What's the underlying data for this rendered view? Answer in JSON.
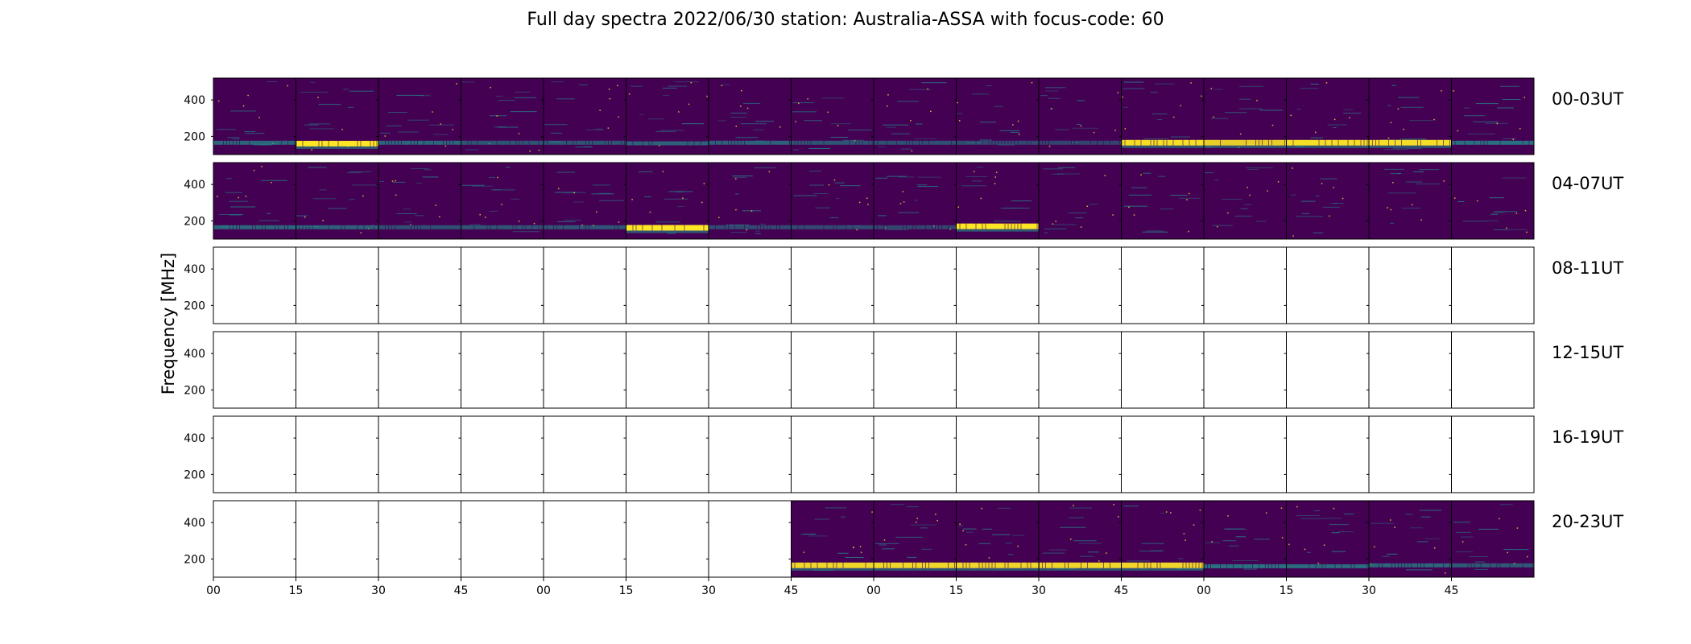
{
  "chart_data": {
    "type": "heatmap",
    "title": "Full day spectra 2022/06/30 station: Australia-ASSA with focus-code: 60",
    "xlabel": "",
    "ylabel": "Frequency [MHz]",
    "ylim": [
      100,
      520
    ],
    "yticks": [
      200,
      400
    ],
    "xtick_labels": [
      "00",
      "15",
      "30",
      "45",
      "00",
      "15",
      "30",
      "45",
      "00",
      "15",
      "30",
      "45",
      "00",
      "15",
      "30",
      "45"
    ],
    "colormap": "viridis",
    "colors": {
      "background": "#440154",
      "band": "#21918c",
      "burst": "#fde725",
      "axis": "#000000"
    },
    "rows": [
      {
        "label": "00-03UT",
        "segments": [
          {
            "has_data": true,
            "band_mhz": 165,
            "intensity": 0.6,
            "burst": false
          },
          {
            "has_data": true,
            "band_mhz": 160,
            "intensity": 1.0,
            "burst": true
          },
          {
            "has_data": true,
            "band_mhz": 165,
            "intensity": 0.6,
            "burst": false
          },
          {
            "has_data": true,
            "band_mhz": 165,
            "intensity": 0.45,
            "burst": false
          },
          {
            "has_data": true,
            "band_mhz": 165,
            "intensity": 0.45,
            "burst": false
          },
          {
            "has_data": true,
            "band_mhz": 162,
            "intensity": 0.55,
            "burst": false
          },
          {
            "has_data": true,
            "band_mhz": 165,
            "intensity": 0.55,
            "burst": false
          },
          {
            "has_data": true,
            "band_mhz": 165,
            "intensity": 0.45,
            "burst": false
          },
          {
            "has_data": true,
            "band_mhz": 165,
            "intensity": 0.4,
            "burst": false
          },
          {
            "has_data": true,
            "band_mhz": 165,
            "intensity": 0.35,
            "burst": false
          },
          {
            "has_data": true,
            "band_mhz": 165,
            "intensity": 0.3,
            "burst": false
          },
          {
            "has_data": true,
            "band_mhz": 165,
            "intensity": 0.95,
            "burst": true
          },
          {
            "has_data": true,
            "band_mhz": 165,
            "intensity": 0.85,
            "burst": true
          },
          {
            "has_data": true,
            "band_mhz": 165,
            "intensity": 0.95,
            "burst": true
          },
          {
            "has_data": true,
            "band_mhz": 165,
            "intensity": 0.95,
            "burst": true
          },
          {
            "has_data": true,
            "band_mhz": 165,
            "intensity": 0.7,
            "burst": false
          }
        ]
      },
      {
        "label": "04-07UT",
        "segments": [
          {
            "has_data": true,
            "band_mhz": 165,
            "intensity": 0.6,
            "burst": false
          },
          {
            "has_data": true,
            "band_mhz": 165,
            "intensity": 0.55,
            "burst": false
          },
          {
            "has_data": true,
            "band_mhz": 165,
            "intensity": 0.4,
            "burst": false
          },
          {
            "has_data": true,
            "band_mhz": 165,
            "intensity": 0.45,
            "burst": false
          },
          {
            "has_data": true,
            "band_mhz": 165,
            "intensity": 0.45,
            "burst": false
          },
          {
            "has_data": true,
            "band_mhz": 162,
            "intensity": 1.0,
            "burst": true
          },
          {
            "has_data": true,
            "band_mhz": 165,
            "intensity": 0.35,
            "burst": false
          },
          {
            "has_data": true,
            "band_mhz": 165,
            "intensity": 0.35,
            "burst": false
          },
          {
            "has_data": true,
            "band_mhz": 165,
            "intensity": 0.3,
            "burst": false
          },
          {
            "has_data": true,
            "band_mhz": 170,
            "intensity": 1.0,
            "burst": true
          },
          {
            "has_data": true,
            "band_mhz": 165,
            "intensity": 0.0,
            "burst": false
          },
          {
            "has_data": true,
            "band_mhz": 165,
            "intensity": 0.0,
            "burst": false
          },
          {
            "has_data": true,
            "band_mhz": 165,
            "intensity": 0.0,
            "burst": false
          },
          {
            "has_data": true,
            "band_mhz": 165,
            "intensity": 0.0,
            "burst": false
          },
          {
            "has_data": true,
            "band_mhz": 165,
            "intensity": 0.0,
            "burst": false
          },
          {
            "has_data": true,
            "band_mhz": 165,
            "intensity": 0.0,
            "burst": false
          }
        ]
      },
      {
        "label": "08-11UT",
        "segments": [
          {
            "has_data": false
          },
          {
            "has_data": false
          },
          {
            "has_data": false
          },
          {
            "has_data": false
          },
          {
            "has_data": false
          },
          {
            "has_data": false
          },
          {
            "has_data": false
          },
          {
            "has_data": false
          },
          {
            "has_data": false
          },
          {
            "has_data": false
          },
          {
            "has_data": false
          },
          {
            "has_data": false
          },
          {
            "has_data": false
          },
          {
            "has_data": false
          },
          {
            "has_data": false
          },
          {
            "has_data": false
          }
        ]
      },
      {
        "label": "12-15UT",
        "segments": [
          {
            "has_data": false
          },
          {
            "has_data": false
          },
          {
            "has_data": false
          },
          {
            "has_data": false
          },
          {
            "has_data": false
          },
          {
            "has_data": false
          },
          {
            "has_data": false
          },
          {
            "has_data": false
          },
          {
            "has_data": false
          },
          {
            "has_data": false
          },
          {
            "has_data": false
          },
          {
            "has_data": false
          },
          {
            "has_data": false
          },
          {
            "has_data": false
          },
          {
            "has_data": false
          },
          {
            "has_data": false
          }
        ]
      },
      {
        "label": "16-19UT",
        "segments": [
          {
            "has_data": false
          },
          {
            "has_data": false
          },
          {
            "has_data": false
          },
          {
            "has_data": false
          },
          {
            "has_data": false
          },
          {
            "has_data": false
          },
          {
            "has_data": false
          },
          {
            "has_data": false
          },
          {
            "has_data": false
          },
          {
            "has_data": false
          },
          {
            "has_data": false
          },
          {
            "has_data": false
          },
          {
            "has_data": false
          },
          {
            "has_data": false
          },
          {
            "has_data": false
          },
          {
            "has_data": false
          }
        ]
      },
      {
        "label": "20-23UT",
        "segments": [
          {
            "has_data": false
          },
          {
            "has_data": false
          },
          {
            "has_data": false
          },
          {
            "has_data": false
          },
          {
            "has_data": false
          },
          {
            "has_data": false
          },
          {
            "has_data": false
          },
          {
            "has_data": true,
            "band_mhz": 165,
            "intensity": 0.9,
            "burst": true
          },
          {
            "has_data": true,
            "band_mhz": 165,
            "intensity": 0.9,
            "burst": true
          },
          {
            "has_data": true,
            "band_mhz": 165,
            "intensity": 0.9,
            "burst": true
          },
          {
            "has_data": true,
            "band_mhz": 165,
            "intensity": 0.9,
            "burst": true
          },
          {
            "has_data": true,
            "band_mhz": 165,
            "intensity": 0.9,
            "burst": true
          },
          {
            "has_data": true,
            "band_mhz": 160,
            "intensity": 0.7,
            "burst": false
          },
          {
            "has_data": true,
            "band_mhz": 160,
            "intensity": 0.65,
            "burst": false
          },
          {
            "has_data": true,
            "band_mhz": 165,
            "intensity": 0.6,
            "burst": false
          },
          {
            "has_data": true,
            "band_mhz": 165,
            "intensity": 0.5,
            "burst": false
          }
        ]
      }
    ]
  }
}
